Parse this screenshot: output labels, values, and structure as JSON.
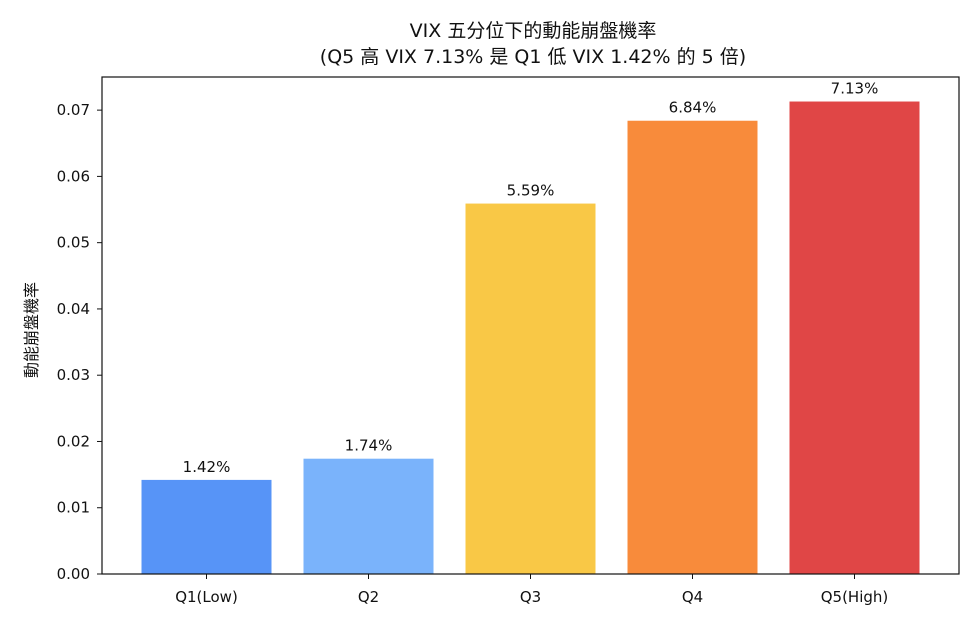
{
  "chart_data": {
    "type": "bar",
    "title": "VIX 五分位下的動能崩盤機率",
    "subtitle": "(Q5 高 VIX 7.13% 是 Q1 低 VIX 1.42% 的 5 倍)",
    "xlabel": "",
    "ylabel": "動能崩盤機率",
    "categories": [
      "Q1(Low)",
      "Q2",
      "Q3",
      "Q4",
      "Q5(High)"
    ],
    "values": [
      0.0142,
      0.0174,
      0.0559,
      0.0684,
      0.0713
    ],
    "data_labels": [
      "1.42%",
      "1.74%",
      "5.59%",
      "6.84%",
      "7.13%"
    ],
    "colors": [
      "#5794f7",
      "#7ab3fb",
      "#f9c846",
      "#f88b3b",
      "#e04646"
    ],
    "ylim": [
      0,
      0.075
    ],
    "yticks": [
      0.0,
      0.01,
      0.02,
      0.03,
      0.04,
      0.05,
      0.06,
      0.07
    ],
    "ytick_labels": [
      "0.00",
      "0.01",
      "0.02",
      "0.03",
      "0.04",
      "0.05",
      "0.06",
      "0.07"
    ],
    "grid": false,
    "legend": "none"
  }
}
